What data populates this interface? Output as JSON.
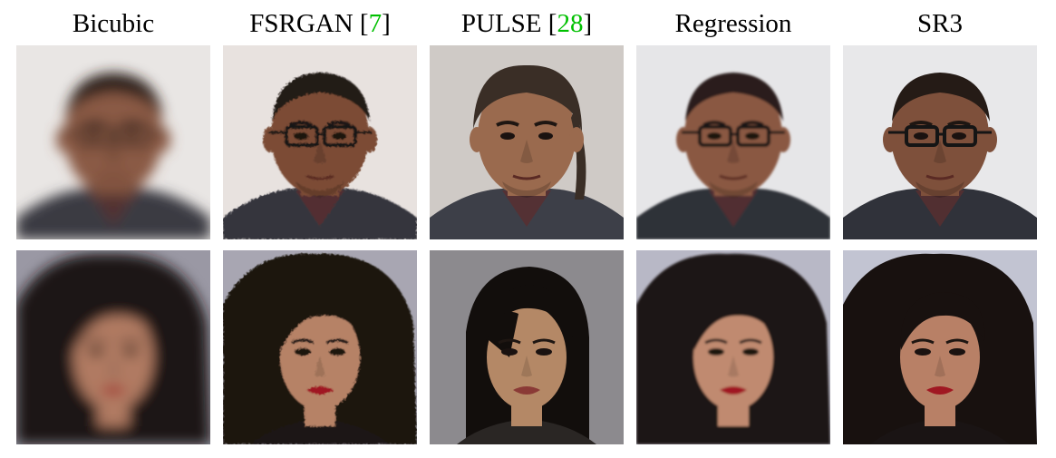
{
  "figure": {
    "columns": [
      {
        "method": "Bicubic",
        "citation": ""
      },
      {
        "method": "FSRGAN",
        "citation": "7"
      },
      {
        "method": "PULSE",
        "citation": "28"
      },
      {
        "method": "Regression",
        "citation": ""
      },
      {
        "method": "SR3",
        "citation": ""
      }
    ],
    "citation_color": "#00c000",
    "rows": [
      {
        "subject": "man-with-glasses",
        "cells": [
          {
            "method": "Bicubic",
            "style": "blurry",
            "bg": "#e9e6e4",
            "skin": "#8a5a44",
            "hair": "#2e231e",
            "shirt": "#3a3b42",
            "glasses": true
          },
          {
            "method": "FSRGAN",
            "style": "artifacts",
            "bg": "#e8e2df",
            "skin": "#7c4c36",
            "hair": "#241a16",
            "shirt": "#34353c",
            "glasses": true
          },
          {
            "method": "PULSE",
            "style": "different-identity",
            "bg": "#cfcac6",
            "skin": "#9a6a4e",
            "hair": "#3a2e26",
            "shirt": "#3d3f48",
            "glasses": false
          },
          {
            "method": "Regression",
            "style": "smooth",
            "bg": "#e6e6e8",
            "skin": "#8a5842",
            "hair": "#2a1f1a",
            "shirt": "#2f3138",
            "glasses": true
          },
          {
            "method": "SR3",
            "style": "sharp",
            "bg": "#e8e8ea",
            "skin": "#7e503b",
            "hair": "#251b16",
            "shirt": "#30323a",
            "glasses": true
          }
        ]
      },
      {
        "subject": "woman-with-curly-hair",
        "cells": [
          {
            "method": "Bicubic",
            "style": "blurry",
            "bg": "#9a98a4",
            "skin": "#b07a62",
            "hair": "#1e1614",
            "shirt": "#1a1414",
            "glasses": false
          },
          {
            "method": "FSRGAN",
            "style": "artifacts",
            "bg": "#a8a6b2",
            "skin": "#b68266",
            "hair": "#1a1210",
            "shirt": "#1a1414",
            "glasses": false
          },
          {
            "method": "PULSE",
            "style": "different-identity",
            "bg": "#8c8a8e",
            "skin": "#b48866",
            "hair": "#120e0c",
            "shirt": "#2a2624",
            "glasses": false
          },
          {
            "method": "Regression",
            "style": "smooth",
            "bg": "#b8b8c6",
            "skin": "#c08a70",
            "hair": "#1c1412",
            "shirt": "#1a1414",
            "glasses": false
          },
          {
            "method": "SR3",
            "style": "sharp",
            "bg": "#c2c4d2",
            "skin": "#b88066",
            "hair": "#18110f",
            "shirt": "#1a1414",
            "glasses": false
          }
        ]
      }
    ]
  }
}
